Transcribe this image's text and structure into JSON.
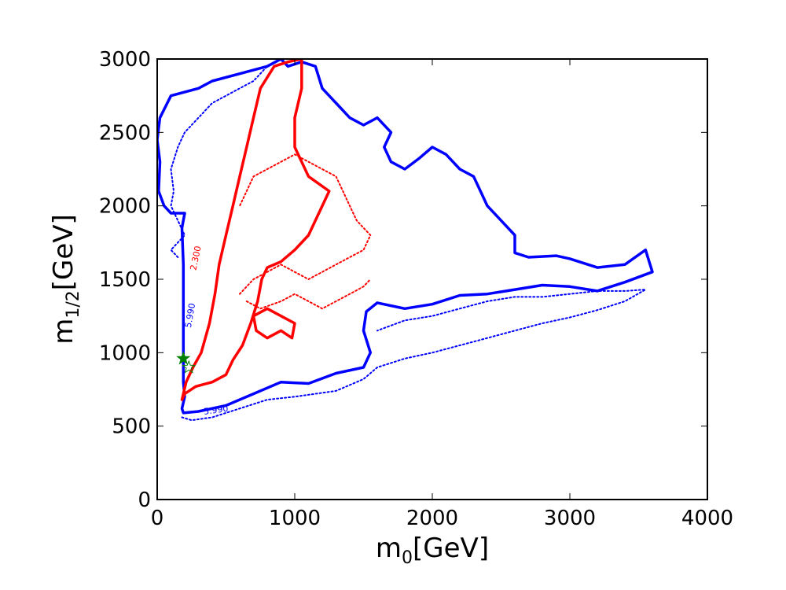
{
  "chart_data": {
    "type": "contour",
    "xlabel": "m",
    "xlabel_sub": "0",
    "xlabel_unit": "[GeV]",
    "ylabel": "m",
    "ylabel_sub": "1/2",
    "ylabel_unit": "[GeV]",
    "xlim": [
      0,
      4000
    ],
    "ylim": [
      0,
      3000
    ],
    "xticks": [
      0,
      1000,
      2000,
      3000,
      4000
    ],
    "xtick_labels": [
      "0",
      "1000",
      "2000",
      "3000",
      "4000"
    ],
    "yticks": [
      0,
      500,
      1000,
      1500,
      2000,
      2500,
      3000
    ],
    "ytick_labels": [
      "0",
      "500",
      "1000",
      "1500",
      "2000",
      "2500",
      "3000"
    ],
    "grid": false,
    "series": [
      {
        "color": "#0000ff",
        "style": "solid",
        "points": [
          [
            200,
            700
          ],
          [
            180,
            620
          ],
          [
            190,
            590
          ],
          [
            300,
            600
          ],
          [
            500,
            640
          ],
          [
            700,
            720
          ],
          [
            900,
            800
          ],
          [
            1100,
            790
          ],
          [
            1300,
            860
          ],
          [
            1500,
            900
          ],
          [
            1550,
            1000
          ],
          [
            1500,
            1150
          ],
          [
            1520,
            1280
          ],
          [
            1600,
            1340
          ],
          [
            1800,
            1300
          ],
          [
            2000,
            1330
          ],
          [
            2200,
            1390
          ],
          [
            2400,
            1400
          ],
          [
            2600,
            1430
          ],
          [
            2800,
            1460
          ],
          [
            3000,
            1450
          ],
          [
            3200,
            1420
          ],
          [
            3400,
            1480
          ],
          [
            3600,
            1550
          ],
          [
            3550,
            1700
          ],
          [
            3400,
            1600
          ],
          [
            3200,
            1580
          ],
          [
            3000,
            1640
          ],
          [
            2900,
            1660
          ],
          [
            2700,
            1650
          ],
          [
            2600,
            1680
          ],
          [
            2600,
            1800
          ],
          [
            2500,
            1900
          ],
          [
            2400,
            2000
          ],
          [
            2350,
            2100
          ],
          [
            2300,
            2200
          ],
          [
            2200,
            2250
          ],
          [
            2100,
            2350
          ],
          [
            2000,
            2400
          ],
          [
            1900,
            2320
          ],
          [
            1800,
            2250
          ],
          [
            1700,
            2300
          ],
          [
            1650,
            2400
          ],
          [
            1700,
            2500
          ],
          [
            1600,
            2600
          ],
          [
            1500,
            2550
          ],
          [
            1400,
            2600
          ],
          [
            1300,
            2700
          ],
          [
            1200,
            2800
          ],
          [
            1150,
            2950
          ],
          [
            1050,
            2980
          ],
          [
            950,
            2950
          ],
          [
            900,
            3000
          ],
          [
            800,
            2950
          ],
          [
            600,
            2900
          ],
          [
            400,
            2850
          ],
          [
            300,
            2800
          ],
          [
            100,
            2750
          ],
          [
            20,
            2600
          ],
          [
            0,
            2450
          ],
          [
            20,
            2300
          ],
          [
            10,
            2100
          ],
          [
            50,
            2000
          ],
          [
            100,
            1950
          ],
          [
            200,
            1950
          ],
          [
            180,
            1850
          ],
          [
            190,
            1600
          ],
          [
            190,
            1300
          ],
          [
            190,
            1000
          ],
          [
            190,
            800
          ],
          [
            200,
            700
          ]
        ]
      },
      {
        "color": "#0000ff",
        "style": "dotted",
        "points": [
          [
            180,
            560
          ],
          [
            250,
            540
          ],
          [
            400,
            560
          ],
          [
            600,
            620
          ],
          [
            800,
            680
          ],
          [
            1000,
            700
          ],
          [
            1300,
            740
          ],
          [
            1500,
            820
          ],
          [
            1600,
            900
          ],
          [
            1800,
            960
          ],
          [
            2000,
            1000
          ],
          [
            2200,
            1050
          ],
          [
            2400,
            1100
          ],
          [
            2600,
            1150
          ],
          [
            2800,
            1200
          ],
          [
            3000,
            1240
          ],
          [
            3200,
            1290
          ],
          [
            3400,
            1350
          ],
          [
            3550,
            1430
          ],
          [
            3400,
            1420
          ],
          [
            3200,
            1420
          ],
          [
            3000,
            1400
          ],
          [
            2800,
            1380
          ],
          [
            2600,
            1380
          ],
          [
            2400,
            1350
          ],
          [
            2200,
            1300
          ],
          [
            2000,
            1250
          ],
          [
            1800,
            1220
          ],
          [
            1600,
            1150
          ]
        ]
      },
      {
        "color": "#0000ff",
        "style": "dotted",
        "points": [
          [
            150,
            1650
          ],
          [
            100,
            1700
          ],
          [
            150,
            1750
          ],
          [
            200,
            1800
          ],
          [
            150,
            1900
          ],
          [
            100,
            2000
          ],
          [
            120,
            2100
          ],
          [
            100,
            2250
          ],
          [
            150,
            2400
          ],
          [
            200,
            2500
          ],
          [
            300,
            2600
          ],
          [
            400,
            2700
          ],
          [
            500,
            2750
          ],
          [
            600,
            2800
          ],
          [
            700,
            2850
          ],
          [
            800,
            2950
          ]
        ]
      },
      {
        "color": "#ff0000",
        "style": "solid",
        "points": [
          [
            180,
            680
          ],
          [
            200,
            720
          ],
          [
            280,
            770
          ],
          [
            400,
            800
          ],
          [
            500,
            850
          ],
          [
            550,
            950
          ],
          [
            620,
            1050
          ],
          [
            680,
            1200
          ],
          [
            730,
            1350
          ],
          [
            760,
            1500
          ],
          [
            800,
            1580
          ],
          [
            900,
            1620
          ],
          [
            1000,
            1700
          ],
          [
            1100,
            1800
          ],
          [
            1150,
            1900
          ],
          [
            1200,
            2000
          ],
          [
            1250,
            2100
          ],
          [
            1100,
            2200
          ],
          [
            1050,
            2300
          ],
          [
            1000,
            2400
          ],
          [
            1000,
            2600
          ],
          [
            1050,
            2800
          ],
          [
            1050,
            3000
          ],
          [
            950,
            2980
          ],
          [
            850,
            2950
          ],
          [
            750,
            2800
          ],
          [
            700,
            2600
          ],
          [
            650,
            2400
          ],
          [
            600,
            2200
          ],
          [
            550,
            2000
          ],
          [
            500,
            1800
          ],
          [
            450,
            1600
          ],
          [
            420,
            1400
          ],
          [
            380,
            1200
          ],
          [
            320,
            1000
          ],
          [
            260,
            900
          ],
          [
            210,
            800
          ],
          [
            180,
            680
          ]
        ]
      },
      {
        "color": "#ff0000",
        "style": "solid",
        "points": [
          [
            700,
            1250
          ],
          [
            800,
            1300
          ],
          [
            900,
            1250
          ],
          [
            1000,
            1200
          ],
          [
            980,
            1100
          ],
          [
            900,
            1150
          ],
          [
            800,
            1100
          ],
          [
            720,
            1150
          ],
          [
            700,
            1250
          ]
        ]
      },
      {
        "color": "#ff0000",
        "style": "dotted",
        "points": [
          [
            600,
            1400
          ],
          [
            700,
            1500
          ],
          [
            800,
            1550
          ],
          [
            900,
            1600
          ],
          [
            1000,
            1550
          ],
          [
            1100,
            1500
          ],
          [
            1200,
            1550
          ],
          [
            1300,
            1600
          ],
          [
            1400,
            1650
          ],
          [
            1500,
            1700
          ],
          [
            1550,
            1800
          ],
          [
            1450,
            1900
          ],
          [
            1400,
            2000
          ],
          [
            1350,
            2100
          ],
          [
            1300,
            2200
          ],
          [
            1200,
            2250
          ],
          [
            1100,
            2300
          ],
          [
            1000,
            2350
          ],
          [
            900,
            2300
          ],
          [
            800,
            2250
          ],
          [
            700,
            2200
          ],
          [
            650,
            2100
          ],
          [
            600,
            2000
          ]
        ]
      },
      {
        "color": "#ff0000",
        "style": "dotted",
        "points": [
          [
            650,
            1350
          ],
          [
            750,
            1300
          ],
          [
            900,
            1350
          ],
          [
            1000,
            1400
          ],
          [
            1100,
            1350
          ],
          [
            1200,
            1300
          ],
          [
            1300,
            1350
          ],
          [
            1400,
            1400
          ],
          [
            1500,
            1450
          ],
          [
            1550,
            1500
          ]
        ]
      }
    ],
    "contour_labels": [
      {
        "text": "5.990",
        "x": 430,
        "y": 590,
        "color": "#0000ff",
        "rotation": -8
      },
      {
        "text": "2.300",
        "x": 300,
        "y": 1640,
        "color": "#ff0000",
        "rotation": -78
      },
      {
        "text": "5.990",
        "x": 260,
        "y": 1250,
        "color": "#0000ff",
        "rotation": -80
      }
    ],
    "markers": [
      {
        "type": "star",
        "filled": true,
        "x": 190,
        "y": 960,
        "color": "#008000"
      },
      {
        "type": "star",
        "filled": false,
        "x": 230,
        "y": 900,
        "color": "#008000"
      }
    ]
  }
}
